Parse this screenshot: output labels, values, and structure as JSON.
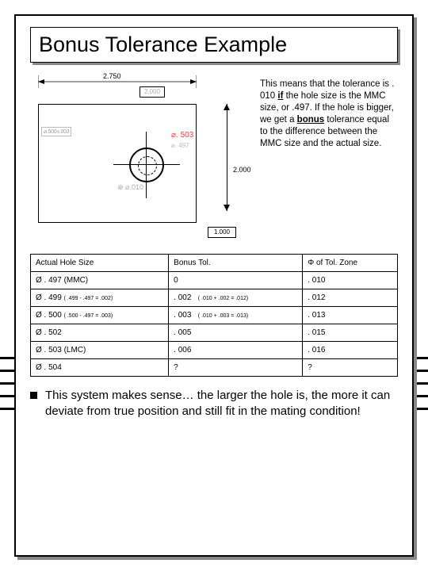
{
  "title": "Bonus Tolerance Example",
  "diagram": {
    "top_dim": "2.750",
    "top_boxed": "2.000",
    "callout_503": "⌀. 503",
    "callout_497": "⌀. 497",
    "fcf": "⌀.500±.003",
    "pos_sym": "⊕ ⌀.010",
    "right_dim": "2.000",
    "right_boxed": "1.000"
  },
  "explain": {
    "p1": "This means that the tolerance is . 010 ",
    "if": "if",
    "p2": " the hole size is the MMC size, or .497. If the hole is bigger, we get a ",
    "bonus": "bonus",
    "p3": " tolerance equal to the difference between the MMC size and the actual size."
  },
  "table": {
    "headers": [
      "Actual Hole Size",
      "Bonus Tol.",
      "Φ of Tol. Zone"
    ],
    "rows": [
      {
        "c1": "Ø . 497 (MMC)",
        "c1s": "",
        "c2": "0",
        "c2s": "",
        "c3": ". 010"
      },
      {
        "c1": "Ø . 499 ",
        "c1s": "( .499 - .497 = .002)",
        "c2": ". 002",
        "c2s": "( .010 + .002 = .012)",
        "c3": ". 012"
      },
      {
        "c1": "Ø . 500 ",
        "c1s": "( .500 - .497 = .003)",
        "c2": ". 003",
        "c2s": "( .010 + .003 = .013)",
        "c3": ". 013"
      },
      {
        "c1": "Ø . 502",
        "c1s": "",
        "c2": ". 005",
        "c2s": "",
        "c3": ". 015"
      },
      {
        "c1": "Ø . 503 (LMC)",
        "c1s": "",
        "c2": ". 006",
        "c2s": "",
        "c3": ". 016"
      },
      {
        "c1": "Ø . 504",
        "c1s": "",
        "c2": "?",
        "c2s": "",
        "c3": "?"
      }
    ]
  },
  "bullet": "This system makes sense… the larger the hole is, the more it can deviate from true position and still fit in the mating condition!",
  "colors": {
    "red": "#ff3333",
    "black": "#000000",
    "grey": "#888888"
  }
}
